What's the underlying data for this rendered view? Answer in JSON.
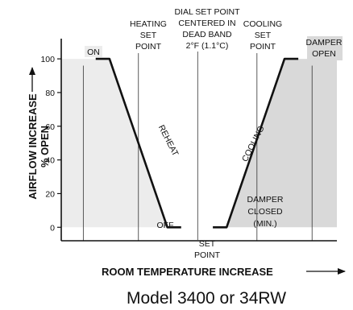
{
  "chart_data": {
    "type": "line",
    "title": "",
    "ylabel_line1": "AIRFLOW INCREASE",
    "ylabel_line2": "% OPEN",
    "xlabel": "ROOM TEMPERATURE INCREASE",
    "caption": "Model 3400 or 34RW",
    "y_ticks": [
      0,
      20,
      40,
      60,
      80,
      100
    ],
    "ylim": [
      -8,
      112
    ],
    "xlim": [
      0,
      100
    ],
    "grid": false,
    "series": [
      {
        "curve": "heating",
        "x": [
          12.5,
          17.5,
          38.5,
          43.5
        ],
        "y": [
          100,
          100,
          0,
          0
        ]
      },
      {
        "curve": "cooling",
        "x": [
          55,
          60,
          81,
          86
        ],
        "y": [
          0,
          0,
          100,
          100
        ]
      }
    ],
    "reference_lines_x": [
      {
        "x": 28,
        "label_lines": [
          "HEATING",
          "SET",
          "POINT"
        ]
      },
      {
        "x": 49.5,
        "label_lines": [
          "DIAL SET POINT",
          "CENTERED IN",
          "DEAD BAND",
          "2°F (1.1°C)"
        ]
      },
      {
        "x": 71,
        "label_lines": [
          "COOLING",
          "SET",
          "POINT"
        ]
      },
      {
        "x": 8,
        "label_lines": []
      },
      {
        "x": 91,
        "label_lines": []
      }
    ],
    "annotations": {
      "on": "ON",
      "off": "OFF",
      "reheat": "REHEAT",
      "cooling_curve": "COOLING",
      "damper_open_lines": [
        "DAMPER",
        "OPEN"
      ],
      "damper_closed_lines": [
        "DAMPER",
        "CLOSED",
        "(MIN.)"
      ],
      "set_point_lines": [
        "SET",
        "POINT"
      ]
    }
  }
}
